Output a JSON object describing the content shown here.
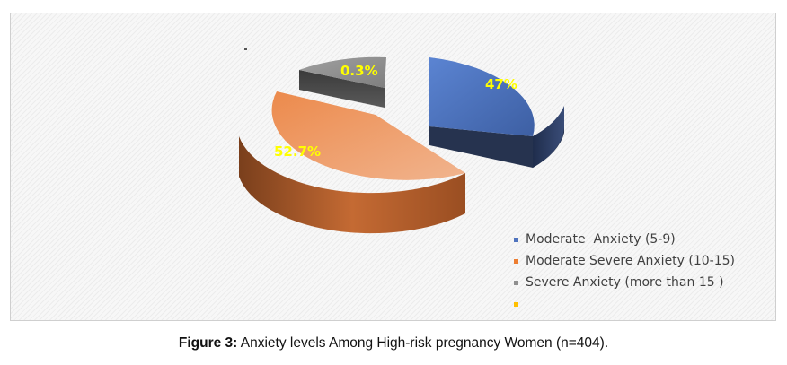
{
  "chart_data": {
    "type": "pie",
    "style": "3d-exploded",
    "slices": [
      {
        "label": "Moderate  Anxiety (5-9)",
        "value": 47,
        "display": "47%",
        "color": "#4f73be"
      },
      {
        "label": "Moderate Severe Anxiety (10-15)",
        "value": 52.7,
        "display": "52.7%",
        "color": "#ed7d31"
      },
      {
        "label": "Severe Anxiety (more than 15 )",
        "value": 0.3,
        "display": "0.3%",
        "color": "#8f8f8f"
      },
      {
        "label": "",
        "value": 0,
        "display": "",
        "color": "#ffc000"
      }
    ],
    "legend_position": "bottom-right"
  },
  "caption": {
    "prefix": "Figure 3:",
    "text": " Anxiety levels Among High-risk pregnancy Women (n=404)."
  }
}
